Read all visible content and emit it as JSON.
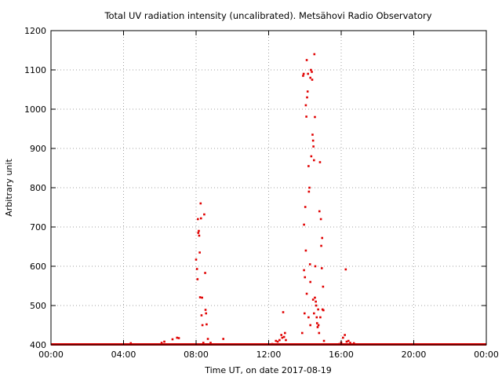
{
  "chart_data": {
    "type": "scatter",
    "title": "Total UV radiation intensity (uncalibrated). Metsähovi Radio Observatory",
    "xlabel": "Time UT, on date 2017-08-19",
    "ylabel": "Arbitrary unit",
    "xlim": [
      0,
      24
    ],
    "ylim": [
      400,
      1200
    ],
    "x_ticks": [
      0,
      4,
      8,
      12,
      16,
      20,
      24
    ],
    "x_tick_labels": [
      "00:00",
      "04:00",
      "08:00",
      "12:00",
      "16:00",
      "20:00",
      "00:00"
    ],
    "y_ticks": [
      400,
      500,
      600,
      700,
      800,
      900,
      1000,
      1100,
      1200
    ],
    "y_tick_labels": [
      "400",
      "500",
      "600",
      "700",
      "800",
      "900",
      "1000",
      "1100",
      "1200"
    ],
    "grid": true,
    "color": "#e00000",
    "baseline_value": 400,
    "series": [
      {
        "points": [
          [
            4.4,
            404
          ],
          [
            6.1,
            405
          ],
          [
            6.25,
            408
          ],
          [
            6.7,
            414
          ],
          [
            6.95,
            418
          ],
          [
            7.05,
            417
          ],
          [
            8.0,
            617
          ],
          [
            8.05,
            593
          ],
          [
            8.08,
            567
          ],
          [
            8.1,
            720
          ],
          [
            8.12,
            685
          ],
          [
            8.15,
            690
          ],
          [
            8.17,
            678
          ],
          [
            8.2,
            635
          ],
          [
            8.22,
            521
          ],
          [
            8.25,
            760
          ],
          [
            8.27,
            722
          ],
          [
            8.3,
            475
          ],
          [
            8.33,
            520
          ],
          [
            8.35,
            450
          ],
          [
            8.4,
            405
          ],
          [
            8.45,
            732
          ],
          [
            8.5,
            583
          ],
          [
            8.52,
            489
          ],
          [
            8.55,
            480
          ],
          [
            8.58,
            452
          ],
          [
            8.65,
            415
          ],
          [
            8.8,
            405
          ],
          [
            9.5,
            415
          ],
          [
            12.2,
            402
          ],
          [
            12.4,
            410
          ],
          [
            12.5,
            408
          ],
          [
            12.6,
            412
          ],
          [
            12.7,
            425
          ],
          [
            12.75,
            418
          ],
          [
            12.8,
            483
          ],
          [
            12.85,
            420
          ],
          [
            12.9,
            430
          ],
          [
            12.95,
            412
          ],
          [
            13.85,
            430
          ],
          [
            13.9,
            1085
          ],
          [
            13.93,
            1090
          ],
          [
            13.95,
            706
          ],
          [
            13.98,
            480
          ],
          [
            14.0,
            572
          ],
          [
            14.02,
            751
          ],
          [
            14.05,
            1010
          ],
          [
            14.08,
            981
          ],
          [
            14.1,
            1125
          ],
          [
            14.12,
            1030
          ],
          [
            14.15,
            1045
          ],
          [
            14.17,
            1090
          ],
          [
            14.2,
            855
          ],
          [
            14.22,
            790
          ],
          [
            14.25,
            800
          ],
          [
            14.28,
            605
          ],
          [
            14.3,
            1080
          ],
          [
            14.33,
            1100
          ],
          [
            14.35,
            880
          ],
          [
            14.38,
            1095
          ],
          [
            14.4,
            1075
          ],
          [
            14.42,
            935
          ],
          [
            14.45,
            920
          ],
          [
            14.47,
            905
          ],
          [
            14.5,
            870
          ],
          [
            14.52,
            1140
          ],
          [
            14.55,
            980
          ],
          [
            14.57,
            600
          ],
          [
            14.6,
            510
          ],
          [
            14.62,
            500
          ],
          [
            14.65,
            470
          ],
          [
            14.67,
            455
          ],
          [
            14.7,
            445
          ],
          [
            14.73,
            490
          ],
          [
            14.75,
            450
          ],
          [
            14.78,
            430
          ],
          [
            14.8,
            740
          ],
          [
            14.83,
            865
          ],
          [
            14.85,
            470
          ],
          [
            14.88,
            720
          ],
          [
            14.9,
            652
          ],
          [
            14.93,
            595
          ],
          [
            14.95,
            672
          ],
          [
            14.97,
            490
          ],
          [
            15.0,
            548
          ],
          [
            15.02,
            488
          ],
          [
            15.05,
            410
          ],
          [
            14.1,
            530
          ],
          [
            14.3,
            560
          ],
          [
            14.45,
            515
          ],
          [
            14.55,
            520
          ],
          [
            14.2,
            470
          ],
          [
            14.3,
            450
          ],
          [
            14.5,
            480
          ],
          [
            13.95,
            590
          ],
          [
            14.05,
            640
          ],
          [
            15.9,
            402
          ],
          [
            16.0,
            406
          ],
          [
            16.1,
            418
          ],
          [
            16.2,
            425
          ],
          [
            16.25,
            592
          ],
          [
            16.3,
            408
          ],
          [
            16.4,
            410
          ],
          [
            16.5,
            405
          ],
          [
            16.7,
            404
          ]
        ]
      }
    ]
  }
}
